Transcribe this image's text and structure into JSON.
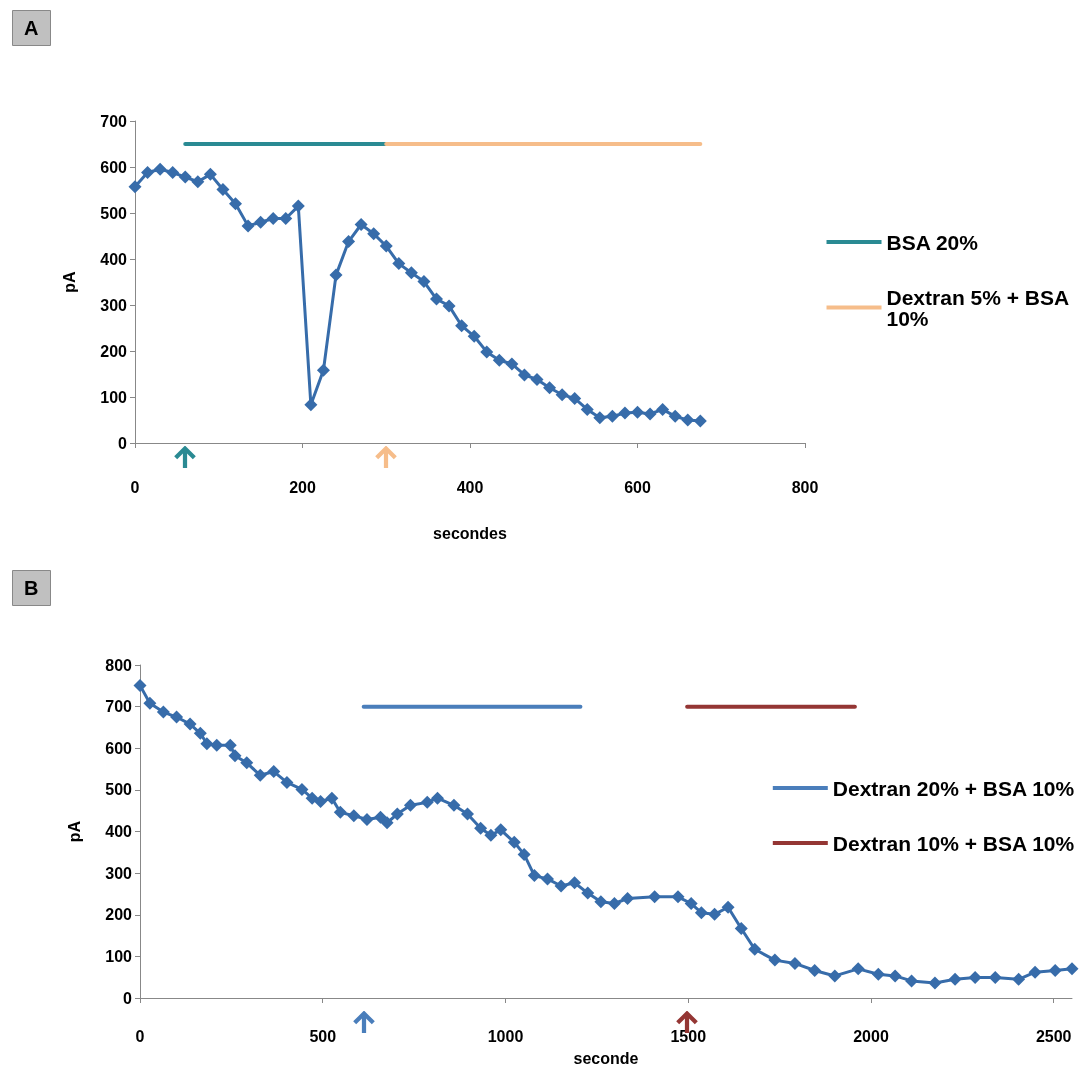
{
  "chart_data": [
    {
      "type": "line",
      "title": "A",
      "xlabel": "secondes",
      "ylabel": "pA",
      "xlim": [
        0,
        800
      ],
      "xticks": [
        0,
        200,
        400,
        600,
        800
      ],
      "ylim": [
        0,
        700
      ],
      "yticks": [
        0,
        100,
        200,
        300,
        400,
        500,
        600,
        700
      ],
      "grid": false,
      "legend": "right",
      "marker": "diamond",
      "line_style": "solid",
      "series": [
        {
          "color": "#376caa",
          "x": [
            0,
            15,
            30,
            45,
            60,
            75,
            90,
            105,
            120,
            135,
            150,
            165,
            180,
            195,
            210,
            225,
            240,
            255,
            270,
            285,
            300,
            315,
            330,
            345,
            360,
            375,
            390,
            405,
            420,
            435,
            450,
            465,
            480,
            495,
            510,
            525,
            540,
            555,
            570,
            585,
            600,
            615,
            630,
            645,
            660,
            675
          ],
          "values": [
            557,
            588,
            595,
            588,
            578,
            568,
            584,
            551,
            520,
            472,
            480,
            488,
            488,
            515,
            83,
            158,
            365,
            438,
            475,
            455,
            428,
            390,
            370,
            351,
            313,
            298,
            255,
            232,
            198,
            180,
            172,
            148,
            138,
            120,
            105,
            97,
            73,
            55,
            58,
            65,
            67,
            63,
            73,
            58,
            50,
            48
          ]
        },
        {
          "name": "BSA 20%",
          "color": "#2a8a93",
          "marker": "none",
          "x": [
            60,
            300
          ],
          "values": [
            650,
            650
          ]
        },
        {
          "name": "Dextran 5% + BSA 10%",
          "color": "#f6bd8a",
          "marker": "none",
          "x": [
            300,
            675
          ],
          "values": [
            650,
            650
          ]
        }
      ]
    },
    {
      "type": "line",
      "title": "B",
      "xlabel": "seconde",
      "ylabel": "pA",
      "xlim": [
        0,
        2550
      ],
      "xticks": [
        0,
        500,
        1000,
        1500,
        2000,
        2500
      ],
      "ylim": [
        0,
        800
      ],
      "yticks": [
        0,
        100,
        200,
        300,
        400,
        500,
        600,
        700,
        800
      ],
      "grid": false,
      "legend": "right",
      "marker": "diamond",
      "line_style": "solid",
      "series": [
        {
          "color": "#376caa",
          "x": [
            0,
            27,
            64,
            100,
            137,
            165,
            183,
            210,
            247,
            260,
            292,
            329,
            366,
            402,
            443,
            471,
            494,
            525,
            548,
            585,
            621,
            658,
            676,
            704,
            740,
            786,
            814,
            859,
            896,
            932,
            960,
            987,
            1024,
            1051,
            1079,
            1115,
            1152,
            1189,
            1225,
            1261,
            1298,
            1334,
            1408,
            1472,
            1508,
            1536,
            1572,
            1609,
            1645,
            1682,
            1737,
            1792,
            1846,
            1901,
            1965,
            2020,
            2066,
            2111,
            2175,
            2230,
            2285,
            2340,
            2404,
            2449,
            2504,
            2550
          ],
          "values": [
            751,
            708,
            687,
            675,
            658,
            636,
            611,
            607,
            607,
            582,
            565,
            535,
            544,
            518,
            501,
            480,
            472,
            480,
            446,
            438,
            429,
            434,
            421,
            442,
            463,
            470,
            480,
            463,
            442,
            408,
            391,
            404,
            374,
            345,
            294,
            286,
            269,
            277,
            252,
            231,
            227,
            239,
            243,
            243,
            227,
            205,
            201,
            218,
            167,
            117,
            91,
            83,
            66,
            53,
            70,
            57,
            53,
            41,
            36,
            45,
            49,
            49,
            45,
            62,
            66,
            70
          ]
        },
        {
          "name": "Dextran 20% + BSA 10%",
          "color": "#4a7ebb",
          "marker": "none",
          "x": [
            612,
            1205
          ],
          "values": [
            700,
            700
          ]
        },
        {
          "name": "Dextran 10% + BSA 10%",
          "color": "#943634",
          "marker": "none",
          "x": [
            1497,
            1956
          ],
          "values": [
            700,
            700
          ]
        }
      ]
    }
  ]
}
